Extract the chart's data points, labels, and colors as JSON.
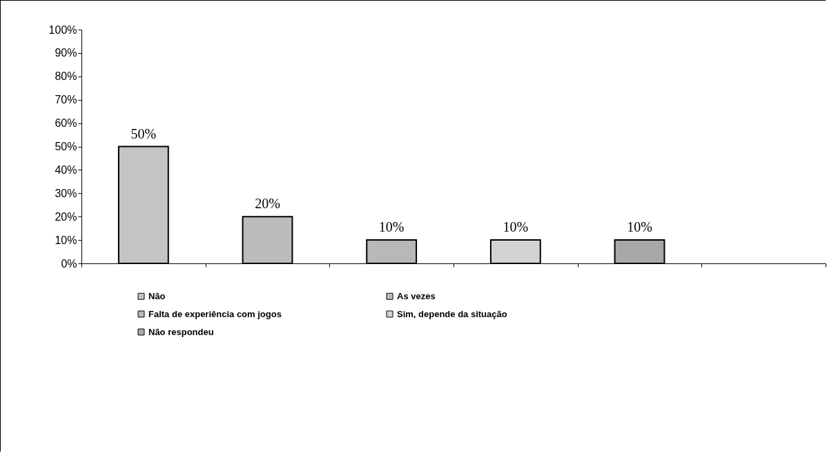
{
  "chart_data": {
    "type": "bar",
    "categories": [
      null,
      null,
      null,
      null,
      null,
      null
    ],
    "series": [
      {
        "name": "Não",
        "color": "#c4c4c4",
        "values": [
          50,
          null,
          null,
          null,
          null,
          null
        ],
        "value_labels": [
          "50%",
          null,
          null,
          null,
          null,
          null
        ]
      },
      {
        "name": "As vezes",
        "color": "#bcbcbc",
        "values": [
          null,
          20,
          null,
          null,
          null,
          null
        ],
        "value_labels": [
          null,
          "20%",
          null,
          null,
          null,
          null
        ]
      },
      {
        "name": "Falta de experiência com jogos",
        "color": "#b8b8b8",
        "values": [
          null,
          null,
          10,
          null,
          null,
          null
        ],
        "value_labels": [
          null,
          null,
          "10%",
          null,
          null,
          null
        ]
      },
      {
        "name": "Sim, depende da situação",
        "color": "#d2d2d2",
        "values": [
          null,
          null,
          null,
          10,
          null,
          null
        ],
        "value_labels": [
          null,
          null,
          null,
          "10%",
          null,
          null
        ]
      },
      {
        "name": "Não respondeu",
        "color": "#a8a8a8",
        "values": [
          null,
          null,
          null,
          null,
          10,
          null
        ],
        "value_labels": [
          null,
          null,
          null,
          null,
          "10%",
          null
        ]
      }
    ],
    "ylim": [
      0,
      100
    ],
    "yticks": [
      {
        "value": 0,
        "label": "0%"
      },
      {
        "value": 10,
        "label": "10%"
      },
      {
        "value": 20,
        "label": "20%"
      },
      {
        "value": 30,
        "label": "30%"
      },
      {
        "value": 40,
        "label": "40%"
      },
      {
        "value": 50,
        "label": "50%"
      },
      {
        "value": 60,
        "label": "60%"
      },
      {
        "value": 70,
        "label": "70%"
      },
      {
        "value": 80,
        "label": "80%"
      },
      {
        "value": 90,
        "label": "90%"
      },
      {
        "value": 100,
        "label": "100%"
      }
    ],
    "grid": false,
    "legend": "bottom",
    "tick_labels": "y"
  }
}
